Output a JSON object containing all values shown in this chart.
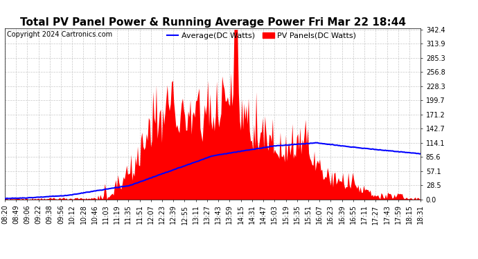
{
  "title": "Total PV Panel Power & Running Average Power Fri Mar 22 18:44",
  "copyright": "Copyright 2024 Cartronics.com",
  "legend_avg": "Average(DC Watts)",
  "legend_pv": "PV Panels(DC Watts)",
  "ymax": 342.4,
  "ymin": 0.0,
  "yticks": [
    0.0,
    28.5,
    57.1,
    85.6,
    114.1,
    142.7,
    171.2,
    199.7,
    228.3,
    256.8,
    285.3,
    313.9,
    342.4
  ],
  "bg_color": "#ffffff",
  "grid_color": "#c8c8c8",
  "pv_color": "#ff0000",
  "avg_color": "#0000ff",
  "title_fontsize": 11,
  "legend_fontsize": 8,
  "copy_fontsize": 7,
  "tick_fontsize": 7,
  "time_labels": [
    "08:20",
    "08:49",
    "09:06",
    "09:22",
    "09:38",
    "09:56",
    "10:12",
    "10:28",
    "10:46",
    "11:03",
    "11:19",
    "11:35",
    "11:51",
    "12:07",
    "12:23",
    "12:39",
    "12:55",
    "13:11",
    "13:27",
    "13:43",
    "13:59",
    "14:15",
    "14:31",
    "14:47",
    "15:03",
    "15:19",
    "15:35",
    "15:51",
    "16:07",
    "16:23",
    "16:39",
    "16:55",
    "17:11",
    "17:27",
    "17:43",
    "17:59",
    "18:15",
    "18:31"
  ],
  "n_points": 380
}
